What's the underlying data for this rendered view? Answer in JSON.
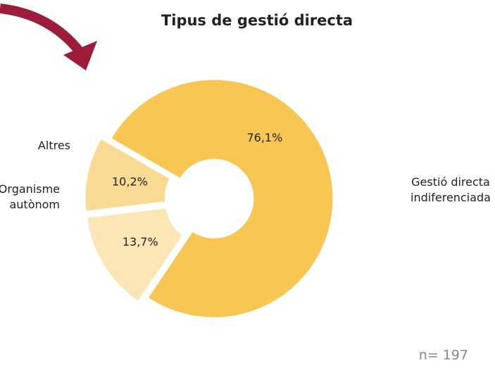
{
  "chart_data": {
    "type": "donut",
    "title": "Tipus de gestió directa",
    "categories": [
      "Gestió directa indiferenciada",
      "Altres",
      "Organisme autònom"
    ],
    "values": [
      76.1,
      13.7,
      10.2
    ],
    "value_labels": [
      "76,1%",
      "13,7%",
      "10,2%"
    ],
    "colors": [
      "#f7c653",
      "#fce6b5",
      "#f9da92"
    ],
    "note": "n= 197"
  }
}
